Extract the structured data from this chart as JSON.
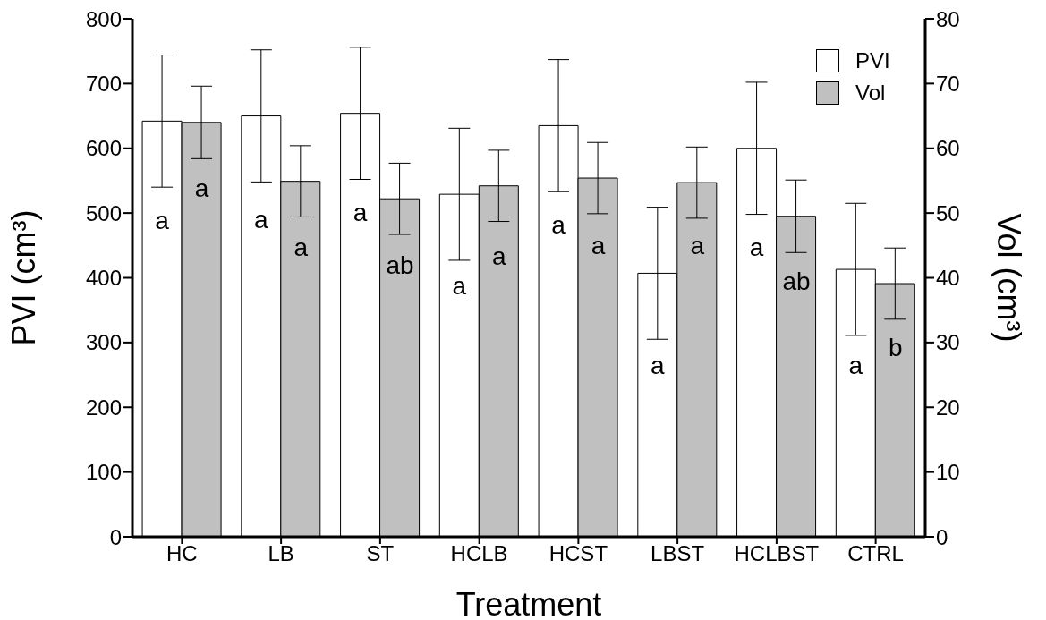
{
  "chart_data": {
    "type": "bar",
    "xlabel": "Treatment",
    "ylabel": "PVI (cm³)",
    "y2label": "Vol (cm³)",
    "categories": [
      "HC",
      "LB",
      "ST",
      "HCLB",
      "HCST",
      "LBST",
      "HCLBST",
      "CTRL"
    ],
    "series": [
      {
        "name": "PVI",
        "color": "#ffffff",
        "values": [
          642,
          650,
          654,
          529,
          635,
          407,
          600,
          413
        ],
        "errors": [
          102,
          102,
          102,
          102,
          102,
          102,
          102,
          102
        ]
      },
      {
        "name": "Vol",
        "color": "#c0c0c0",
        "axis": "y2",
        "values": [
          64.0,
          54.9,
          52.2,
          54.2,
          55.4,
          54.7,
          49.5,
          39.1
        ],
        "errors": [
          5.6,
          5.5,
          5.5,
          5.5,
          5.5,
          5.5,
          5.6,
          5.5
        ]
      }
    ],
    "ylim": [
      0,
      800
    ],
    "yticks": [
      0,
      100,
      200,
      300,
      400,
      500,
      600,
      700,
      800
    ],
    "y2lim": [
      0,
      80
    ],
    "y2ticks": [
      0,
      10,
      20,
      30,
      40,
      50,
      60,
      70,
      80
    ],
    "legend": "top right",
    "grid": false,
    "annotations": [
      {
        "text": "a",
        "x": "HC",
        "y": 489
      },
      {
        "text": "a",
        "x": "HC",
        "y": 539
      },
      {
        "text": "a",
        "x": "LB",
        "y": 491
      },
      {
        "text": "a",
        "x": "LB",
        "y": 448
      },
      {
        "text": "a",
        "x": "ST",
        "y": 502
      },
      {
        "text": "ab",
        "x": "ST",
        "y": 420
      },
      {
        "text": "a",
        "x": "HCLB",
        "y": 388
      },
      {
        "text": "a",
        "x": "HCLB",
        "y": 434
      },
      {
        "text": "a",
        "x": "HCST",
        "y": 482
      },
      {
        "text": "a",
        "x": "HCST",
        "y": 450
      },
      {
        "text": "a",
        "x": "LBST",
        "y": 265
      },
      {
        "text": "a",
        "x": "LBST",
        "y": 450
      },
      {
        "text": "a",
        "x": "HCLBST",
        "y": 448
      },
      {
        "text": "ab",
        "x": "HCLBST",
        "y": 395
      },
      {
        "text": "a",
        "x": "CTRL",
        "y": 265
      },
      {
        "text": "b",
        "x": "CTRL",
        "y": 293
      }
    ]
  }
}
